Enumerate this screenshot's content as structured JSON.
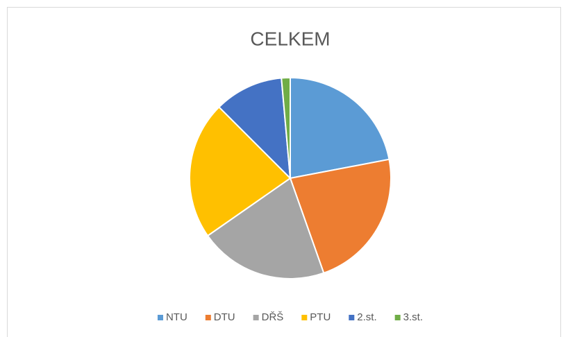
{
  "chart_data": {
    "type": "pie",
    "title": "CELKEM",
    "categories": [
      "NTU",
      "DTU",
      "DŘŠ",
      "PTU",
      "2.st.",
      "3.st."
    ],
    "values": [
      22,
      22.6,
      20.7,
      22.2,
      11.1,
      1.4
    ],
    "colors": [
      "#5b9bd5",
      "#ed7d31",
      "#a5a5a5",
      "#ffc000",
      "#4472c4",
      "#70ad47"
    ],
    "legend": "bottom"
  }
}
